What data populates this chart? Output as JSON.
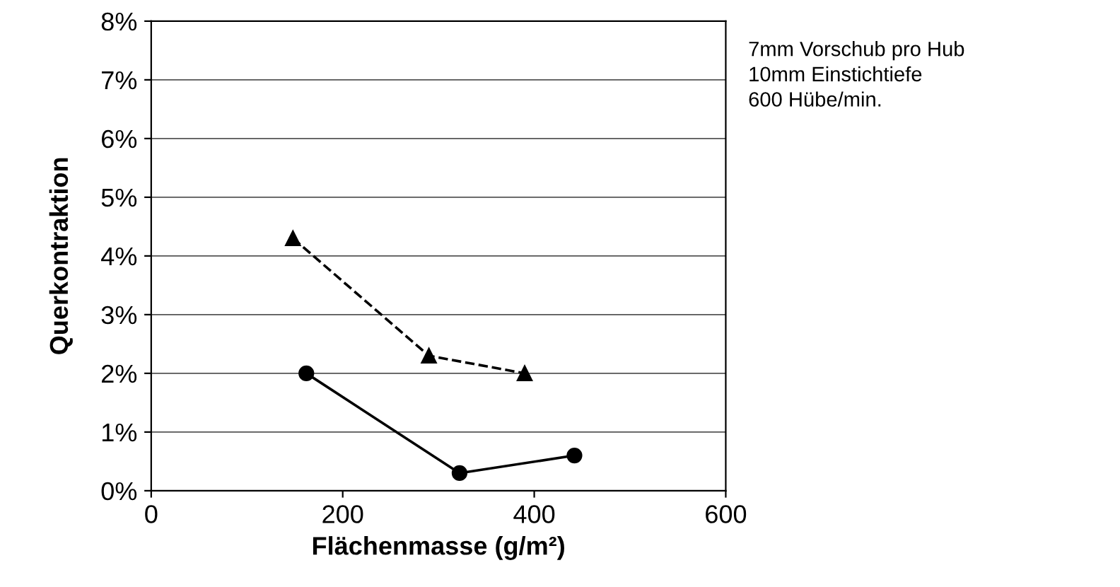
{
  "chart_data": {
    "type": "line",
    "xlabel": "Flächenmasse (g/m²)",
    "ylabel": "Querkontraktion",
    "annotations": [
      "7mm Vorschub pro Hub\n10mm Einstichtiefe\n600 Hübe/min."
    ],
    "series": [
      {
        "color": "#000000",
        "marker": "triangle",
        "line_style": "dashed",
        "x": [
          148,
          290,
          390
        ],
        "values": [
          4.3,
          2.3,
          2.0
        ]
      },
      {
        "color": "#000000",
        "marker": "circle",
        "line_style": "solid",
        "x": [
          162,
          322,
          442
        ],
        "values": [
          2.0,
          0.3,
          0.6
        ]
      }
    ],
    "xlim": [
      0,
      600
    ],
    "xticks": [
      0,
      200,
      400,
      600
    ],
    "ylim": [
      0,
      8
    ],
    "yticks": [
      {
        "value": 0,
        "label": "0%"
      },
      {
        "value": 1,
        "label": "1%"
      },
      {
        "value": 2,
        "label": "2%"
      },
      {
        "value": 3,
        "label": "3%"
      },
      {
        "value": 4,
        "label": "4%"
      },
      {
        "value": 5,
        "label": "5%"
      },
      {
        "value": 6,
        "label": "6%"
      },
      {
        "value": 7,
        "label": "7%"
      },
      {
        "value": 8,
        "label": "8%"
      }
    ],
    "grid": "y"
  }
}
